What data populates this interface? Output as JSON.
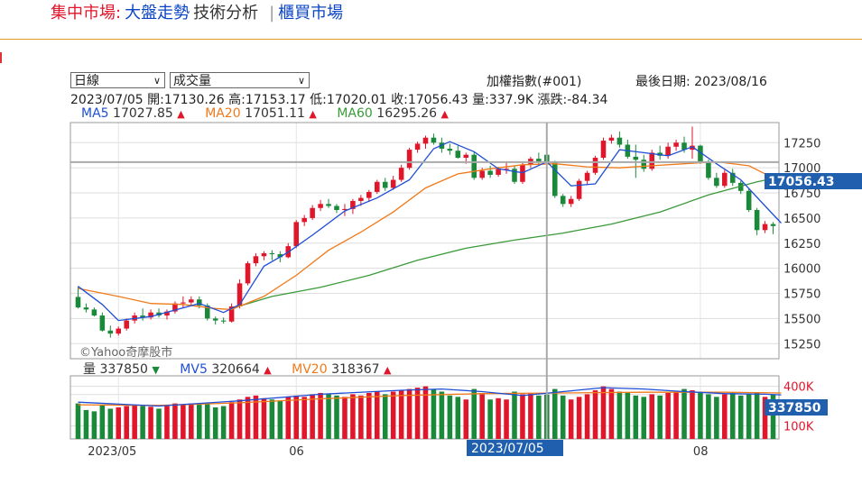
{
  "nav": {
    "current_label": "集中市場:",
    "items": [
      "大盤走勢",
      "技術分析",
      "櫃買市場"
    ],
    "separator": "|"
  },
  "controls": {
    "period_select": "日線",
    "indicator_select": "成交量"
  },
  "header": {
    "index_name": "加權指數(#001)",
    "last_date": "最後日期: 2023/08/16"
  },
  "quote": {
    "date": "2023/07/05",
    "open": "開:17130.26",
    "high": "高:17153.17",
    "low": "低:17020.01",
    "close": "收:17056.43",
    "volume": "量:337.9K",
    "change": "漲跌:-84.34"
  },
  "ma_legend": [
    {
      "label": "MA5",
      "value": "17027.85",
      "arrow": "▲",
      "color": "#1f4fd6"
    },
    {
      "label": "MA20",
      "value": "17051.11",
      "arrow": "▲",
      "color": "#f07a1a"
    },
    {
      "label": "MA60",
      "value": "16295.26",
      "arrow": "▲",
      "color": "#3a9a3a"
    }
  ],
  "vol_legend": [
    {
      "label": "量",
      "value": "337850",
      "arrow": "▼",
      "color": "#333333",
      "arrow_color": "#1a8a3a"
    },
    {
      "label": "MV5",
      "value": "320664",
      "arrow": "▲",
      "color": "#1f4fd6",
      "arrow_color": "#e0162b"
    },
    {
      "label": "MV20",
      "value": "318367",
      "arrow": "▲",
      "color": "#f07a1a",
      "arrow_color": "#e0162b"
    }
  ],
  "watermark": "©Yahoo奇摩股市",
  "current_price_label": "17056.43",
  "current_volume_label": "337850",
  "cursor_date_label": "2023/07/05",
  "chart_data": {
    "type": "candlestick",
    "price_axis": {
      "ticks": [
        15250,
        15500,
        15750,
        16000,
        16250,
        16500,
        16750,
        17000,
        17250
      ],
      "ylim": [
        15100,
        17450
      ]
    },
    "volume_axis": {
      "ticks": [
        "100K",
        "337850",
        "400K"
      ],
      "ylim": [
        0,
        480
      ]
    },
    "x_tick_labels": [
      "2023/05",
      "06",
      "08"
    ],
    "colors": {
      "up": "#e0162b",
      "down": "#1a8a3a",
      "ma5": "#1f4fd6",
      "ma20": "#f07a1a",
      "ma60": "#3a9a3a"
    },
    "candles": [
      [
        15715,
        15820,
        15600,
        15610,
        270
      ],
      [
        15610,
        15650,
        15560,
        15590,
        220
      ],
      [
        15590,
        15610,
        15520,
        15530,
        210
      ],
      [
        15530,
        15560,
        15370,
        15380,
        260
      ],
      [
        15380,
        15430,
        15310,
        15350,
        230
      ],
      [
        15350,
        15420,
        15330,
        15400,
        240
      ],
      [
        15400,
        15500,
        15380,
        15480,
        250
      ],
      [
        15480,
        15560,
        15450,
        15530,
        260
      ],
      [
        15530,
        15600,
        15480,
        15510,
        250
      ],
      [
        15510,
        15590,
        15490,
        15560,
        245
      ],
      [
        15560,
        15600,
        15510,
        15530,
        230
      ],
      [
        15530,
        15590,
        15490,
        15570,
        250
      ],
      [
        15570,
        15670,
        15550,
        15650,
        270
      ],
      [
        15650,
        15720,
        15610,
        15660,
        260
      ],
      [
        15660,
        15720,
        15620,
        15690,
        270
      ],
      [
        15690,
        15720,
        15600,
        15630,
        260
      ],
      [
        15630,
        15650,
        15480,
        15500,
        270
      ],
      [
        15500,
        15520,
        15440,
        15480,
        240
      ],
      [
        15480,
        15510,
        15450,
        15470,
        250
      ],
      [
        15470,
        15650,
        15460,
        15620,
        280
      ],
      [
        15620,
        15890,
        15600,
        15850,
        300
      ],
      [
        15850,
        16070,
        15830,
        16050,
        320
      ],
      [
        16050,
        16150,
        16020,
        16120,
        330
      ],
      [
        16120,
        16170,
        16080,
        16150,
        310
      ],
      [
        16150,
        16180,
        16080,
        16140,
        300
      ],
      [
        16140,
        16170,
        16060,
        16110,
        290
      ],
      [
        16110,
        16250,
        16100,
        16220,
        320
      ],
      [
        16220,
        16480,
        16200,
        16460,
        330
      ],
      [
        16460,
        16530,
        16420,
        16500,
        320
      ],
      [
        16500,
        16630,
        16480,
        16600,
        340
      ],
      [
        16600,
        16680,
        16570,
        16640,
        350
      ],
      [
        16640,
        16690,
        16600,
        16620,
        340
      ],
      [
        16620,
        16640,
        16550,
        16580,
        330
      ],
      [
        16580,
        16640,
        16520,
        16590,
        320
      ],
      [
        16590,
        16690,
        16540,
        16670,
        340
      ],
      [
        16670,
        16730,
        16620,
        16700,
        330
      ],
      [
        16700,
        16780,
        16660,
        16760,
        350
      ],
      [
        16760,
        16880,
        16740,
        16860,
        360
      ],
      [
        16860,
        16900,
        16770,
        16800,
        340
      ],
      [
        16800,
        16920,
        16780,
        16880,
        360
      ],
      [
        16880,
        17030,
        16860,
        17000,
        370
      ],
      [
        17000,
        17200,
        16980,
        17180,
        380
      ],
      [
        17180,
        17260,
        17150,
        17240,
        390
      ],
      [
        17240,
        17320,
        17190,
        17300,
        400
      ],
      [
        17300,
        17340,
        17230,
        17250,
        380
      ],
      [
        17250,
        17300,
        17150,
        17190,
        360
      ],
      [
        17190,
        17240,
        17130,
        17170,
        330
      ],
      [
        17170,
        17220,
        17090,
        17100,
        320
      ],
      [
        17100,
        17150,
        17040,
        17130,
        300
      ],
      [
        17130,
        17160,
        16880,
        16900,
        380
      ],
      [
        16900,
        17000,
        16880,
        16970,
        340
      ],
      [
        16970,
        17020,
        16900,
        16930,
        300
      ],
      [
        16930,
        17010,
        16910,
        16990,
        310
      ],
      [
        16990,
        17060,
        16940,
        16990,
        300
      ],
      [
        16990,
        17020,
        16840,
        16860,
        360
      ],
      [
        16860,
        17050,
        16840,
        17030,
        340
      ],
      [
        17030,
        17110,
        17000,
        17090,
        350
      ],
      [
        17090,
        17150,
        17030,
        17060,
        330
      ],
      [
        17130,
        17153,
        17020,
        17056,
        338
      ],
      [
        17056,
        17070,
        16700,
        16720,
        380
      ],
      [
        16720,
        16740,
        16610,
        16640,
        330
      ],
      [
        16640,
        16720,
        16610,
        16690,
        300
      ],
      [
        16690,
        16890,
        16670,
        16870,
        320
      ],
      [
        16870,
        16970,
        16830,
        16950,
        340
      ],
      [
        16950,
        17120,
        16930,
        17100,
        370
      ],
      [
        17100,
        17300,
        17080,
        17270,
        400
      ],
      [
        17270,
        17330,
        17240,
        17300,
        380
      ],
      [
        17300,
        17360,
        17200,
        17230,
        360
      ],
      [
        17230,
        17280,
        17090,
        17110,
        350
      ],
      [
        17110,
        17230,
        16900,
        17080,
        330
      ],
      [
        17080,
        17130,
        16960,
        16990,
        320
      ],
      [
        16990,
        17180,
        16970,
        17150,
        340
      ],
      [
        17150,
        17220,
        17080,
        17120,
        330
      ],
      [
        17120,
        17250,
        17090,
        17210,
        350
      ],
      [
        17210,
        17280,
        17170,
        17250,
        360
      ],
      [
        17250,
        17310,
        17150,
        17180,
        380
      ],
      [
        17180,
        17410,
        17090,
        17220,
        370
      ],
      [
        17220,
        17230,
        17040,
        17060,
        350
      ],
      [
        17060,
        17080,
        16880,
        16900,
        340
      ],
      [
        16900,
        16950,
        16800,
        16820,
        320
      ],
      [
        16820,
        16980,
        16800,
        16950,
        340
      ],
      [
        16950,
        16990,
        16820,
        16850,
        350
      ],
      [
        16850,
        16870,
        16740,
        16770,
        330
      ],
      [
        16770,
        16790,
        16560,
        16580,
        340
      ],
      [
        16580,
        16600,
        16330,
        16380,
        350
      ],
      [
        16380,
        16470,
        16350,
        16440,
        320
      ],
      [
        16440,
        16460,
        16340,
        16420,
        338
      ]
    ],
    "ma5_anchors": [
      [
        0,
        15820
      ],
      [
        3,
        15640
      ],
      [
        5,
        15480
      ],
      [
        9,
        15520
      ],
      [
        15,
        15650
      ],
      [
        18,
        15560
      ],
      [
        20,
        15640
      ],
      [
        23,
        16020
      ],
      [
        26,
        16160
      ],
      [
        29,
        16330
      ],
      [
        33,
        16570
      ],
      [
        37,
        16700
      ],
      [
        41,
        16880
      ],
      [
        44,
        17190
      ],
      [
        46,
        17260
      ],
      [
        49,
        17160
      ],
      [
        52,
        16990
      ],
      [
        55,
        16950
      ],
      [
        58,
        17060
      ],
      [
        61,
        16820
      ],
      [
        64,
        16840
      ],
      [
        67,
        17180
      ],
      [
        70,
        17150
      ],
      [
        73,
        17120
      ],
      [
        76,
        17210
      ],
      [
        79,
        17040
      ],
      [
        82,
        16880
      ],
      [
        85,
        16620
      ],
      [
        87,
        16450
      ]
    ],
    "ma20_anchors": [
      [
        0,
        15800
      ],
      [
        5,
        15720
      ],
      [
        9,
        15650
      ],
      [
        13,
        15640
      ],
      [
        17,
        15600
      ],
      [
        19,
        15590
      ],
      [
        23,
        15720
      ],
      [
        27,
        15930
      ],
      [
        31,
        16180
      ],
      [
        35,
        16360
      ],
      [
        39,
        16560
      ],
      [
        43,
        16800
      ],
      [
        47,
        16940
      ],
      [
        51,
        16990
      ],
      [
        55,
        17030
      ],
      [
        59,
        17040
      ],
      [
        63,
        17010
      ],
      [
        67,
        17000
      ],
      [
        71,
        17020
      ],
      [
        75,
        17040
      ],
      [
        79,
        17060
      ],
      [
        83,
        17020
      ],
      [
        85,
        16940
      ],
      [
        87,
        16840
      ]
    ],
    "ma60_anchors": [
      [
        19,
        15600
      ],
      [
        24,
        15720
      ],
      [
        30,
        15810
      ],
      [
        36,
        15930
      ],
      [
        42,
        16080
      ],
      [
        48,
        16200
      ],
      [
        54,
        16280
      ],
      [
        60,
        16350
      ],
      [
        66,
        16440
      ],
      [
        72,
        16560
      ],
      [
        78,
        16730
      ],
      [
        84,
        16860
      ],
      [
        87,
        16910
      ]
    ],
    "mv5_anchors": [
      [
        0,
        280
      ],
      [
        10,
        250
      ],
      [
        20,
        290
      ],
      [
        30,
        340
      ],
      [
        40,
        370
      ],
      [
        45,
        380
      ],
      [
        50,
        360
      ],
      [
        55,
        330
      ],
      [
        60,
        360
      ],
      [
        65,
        390
      ],
      [
        70,
        380
      ],
      [
        75,
        360
      ],
      [
        80,
        345
      ],
      [
        85,
        340
      ],
      [
        87,
        335
      ]
    ],
    "mv20_anchors": [
      [
        0,
        260
      ],
      [
        10,
        255
      ],
      [
        20,
        275
      ],
      [
        30,
        305
      ],
      [
        40,
        330
      ],
      [
        50,
        345
      ],
      [
        60,
        350
      ],
      [
        70,
        355
      ],
      [
        80,
        355
      ],
      [
        87,
        350
      ]
    ],
    "cursor_index": 58
  }
}
